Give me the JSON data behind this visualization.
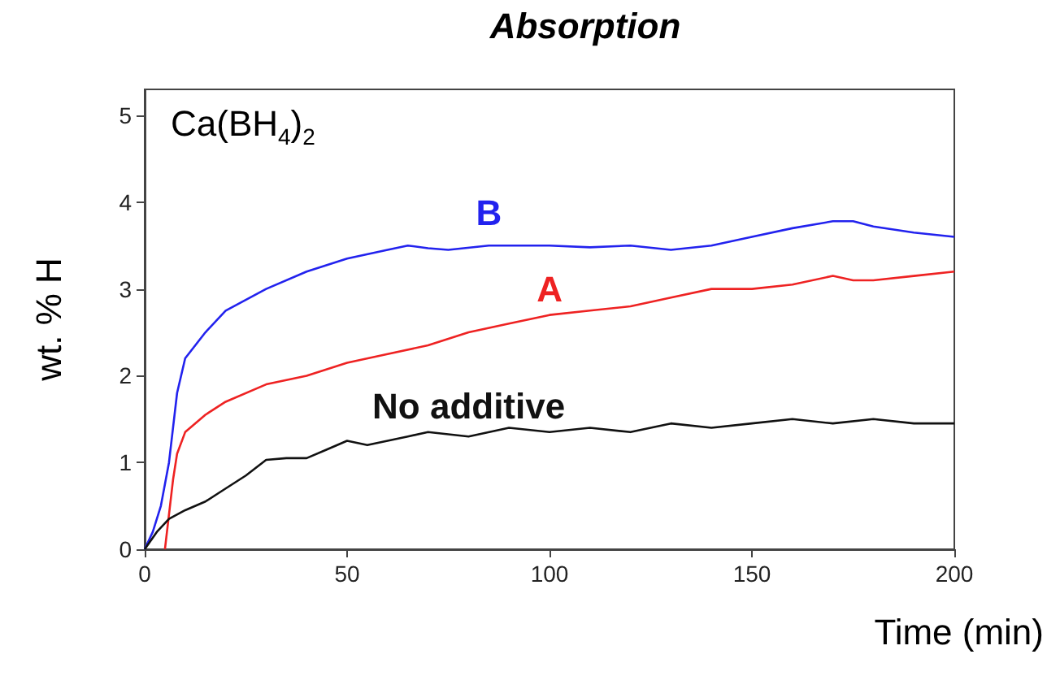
{
  "chart_data": {
    "type": "line",
    "title": "Absorption",
    "xlabel": "Time (min)",
    "ylabel": "wt. % H",
    "annotations": [
      "Ca(BH$_{4}$)$_{2}$"
    ],
    "series": [
      {
        "name": "B",
        "color": "#2222ee",
        "x": [
          0,
          2,
          4,
          6,
          8,
          10,
          15,
          20,
          30,
          40,
          50,
          60,
          65,
          70,
          75,
          85,
          100,
          110,
          120,
          130,
          140,
          150,
          160,
          170,
          175,
          180,
          190,
          200
        ],
        "values": [
          0,
          0.2,
          0.5,
          1.0,
          1.8,
          2.2,
          2.5,
          2.75,
          3.0,
          3.2,
          3.35,
          3.45,
          3.5,
          3.47,
          3.45,
          3.5,
          3.5,
          3.48,
          3.5,
          3.45,
          3.5,
          3.6,
          3.7,
          3.78,
          3.78,
          3.72,
          3.65,
          3.6
        ]
      },
      {
        "name": "A",
        "color": "#ee2222",
        "x": [
          5,
          7,
          8,
          10,
          15,
          20,
          30,
          40,
          50,
          60,
          70,
          80,
          90,
          100,
          110,
          120,
          130,
          140,
          150,
          160,
          170,
          175,
          180,
          190,
          200
        ],
        "values": [
          0,
          0.8,
          1.1,
          1.35,
          1.55,
          1.7,
          1.9,
          2.0,
          2.15,
          2.25,
          2.35,
          2.5,
          2.6,
          2.7,
          2.75,
          2.8,
          2.9,
          3.0,
          3.0,
          3.05,
          3.15,
          3.1,
          3.1,
          3.15,
          3.2
        ]
      },
      {
        "name": "No additive",
        "color": "#111111",
        "x": [
          0,
          3,
          6,
          10,
          15,
          20,
          25,
          30,
          35,
          40,
          45,
          50,
          55,
          60,
          65,
          70,
          80,
          90,
          100,
          110,
          120,
          130,
          140,
          150,
          160,
          170,
          180,
          190,
          200
        ],
        "values": [
          0,
          0.2,
          0.35,
          0.45,
          0.55,
          0.7,
          0.85,
          1.03,
          1.05,
          1.05,
          1.15,
          1.25,
          1.2,
          1.25,
          1.3,
          1.35,
          1.3,
          1.4,
          1.35,
          1.4,
          1.35,
          1.45,
          1.4,
          1.45,
          1.5,
          1.45,
          1.5,
          1.45,
          1.45
        ]
      }
    ],
    "xlim": [
      0,
      200
    ],
    "xticks": [
      0,
      50,
      100,
      150,
      200
    ],
    "ylim": [
      0,
      5.3
    ],
    "yticks": [
      0,
      1,
      2,
      3,
      4,
      5
    ],
    "grid": false,
    "legend": false,
    "marker": "none",
    "line_style": "solid"
  }
}
